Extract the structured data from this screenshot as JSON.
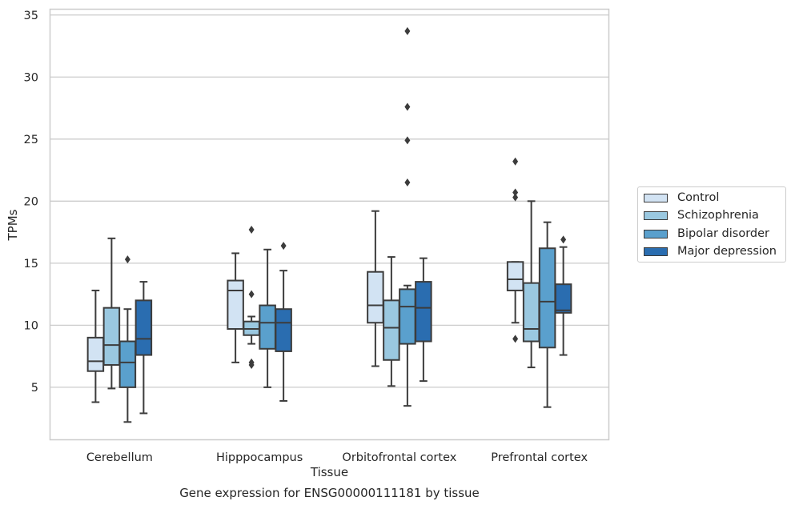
{
  "chart_data": {
    "type": "box",
    "title": "",
    "caption": "Gene expression for ENSG00000111181 by tissue",
    "xlabel": "Tissue",
    "ylabel": "TPMs",
    "ylim": [
      0.8,
      35.5
    ],
    "yticks": [
      5,
      10,
      15,
      20,
      25,
      30,
      35
    ],
    "grid": "horizontal",
    "legend_position": "right",
    "categories": [
      "Cerebellum",
      "Hipppocampus",
      "Orbitofrontal cortex",
      "Prefrontal cortex"
    ],
    "series": [
      {
        "name": "Control",
        "color": "#d2e3f3",
        "boxes": [
          {
            "whislo": 3.8,
            "q1": 6.3,
            "med": 7.1,
            "q3": 9.0,
            "whishi": 12.8,
            "fliers": []
          },
          {
            "whislo": 7.0,
            "q1": 9.7,
            "med": 12.8,
            "q3": 13.6,
            "whishi": 15.8,
            "fliers": []
          },
          {
            "whislo": 6.7,
            "q1": 10.2,
            "med": 11.6,
            "q3": 14.3,
            "whishi": 19.2,
            "fliers": []
          },
          {
            "whislo": 10.2,
            "q1": 12.8,
            "med": 13.7,
            "q3": 15.1,
            "whishi": 15.1,
            "fliers": [
              8.9,
              20.3,
              20.7,
              23.2
            ]
          }
        ]
      },
      {
        "name": "Schizophrenia",
        "color": "#9ac8e0",
        "boxes": [
          {
            "whislo": 4.9,
            "q1": 6.8,
            "med": 8.4,
            "q3": 11.4,
            "whishi": 17.0,
            "fliers": []
          },
          {
            "whislo": 8.5,
            "q1": 9.2,
            "med": 9.7,
            "q3": 10.3,
            "whishi": 10.7,
            "fliers": [
              6.8,
              7.0,
              12.5,
              17.7
            ]
          },
          {
            "whislo": 5.1,
            "q1": 7.2,
            "med": 9.8,
            "q3": 12.0,
            "whishi": 15.5,
            "fliers": []
          },
          {
            "whislo": 6.6,
            "q1": 8.7,
            "med": 9.7,
            "q3": 13.4,
            "whishi": 20.0,
            "fliers": []
          }
        ]
      },
      {
        "name": "Bipolar disorder",
        "color": "#5aa0cd",
        "boxes": [
          {
            "whislo": 2.2,
            "q1": 5.0,
            "med": 7.0,
            "q3": 8.7,
            "whishi": 11.3,
            "fliers": [
              15.3
            ]
          },
          {
            "whislo": 5.0,
            "q1": 8.1,
            "med": 10.2,
            "q3": 11.6,
            "whishi": 16.1,
            "fliers": []
          },
          {
            "whislo": 3.5,
            "q1": 8.5,
            "med": 11.5,
            "q3": 12.9,
            "whishi": 13.2,
            "fliers": [
              21.5,
              24.9,
              27.6,
              33.7
            ]
          },
          {
            "whislo": 3.4,
            "q1": 8.2,
            "med": 11.9,
            "q3": 16.2,
            "whishi": 18.3,
            "fliers": []
          }
        ]
      },
      {
        "name": "Major depression",
        "color": "#2a6db0",
        "boxes": [
          {
            "whislo": 2.9,
            "q1": 7.6,
            "med": 8.9,
            "q3": 12.0,
            "whishi": 13.5,
            "fliers": []
          },
          {
            "whislo": 3.9,
            "q1": 7.9,
            "med": 10.2,
            "q3": 11.3,
            "whishi": 14.4,
            "fliers": [
              16.4
            ]
          },
          {
            "whislo": 5.5,
            "q1": 8.7,
            "med": 11.4,
            "q3": 13.5,
            "whishi": 15.4,
            "fliers": []
          },
          {
            "whislo": 7.6,
            "q1": 11.0,
            "med": 11.2,
            "q3": 13.3,
            "whishi": 16.3,
            "fliers": [
              16.9
            ]
          }
        ]
      }
    ]
  }
}
